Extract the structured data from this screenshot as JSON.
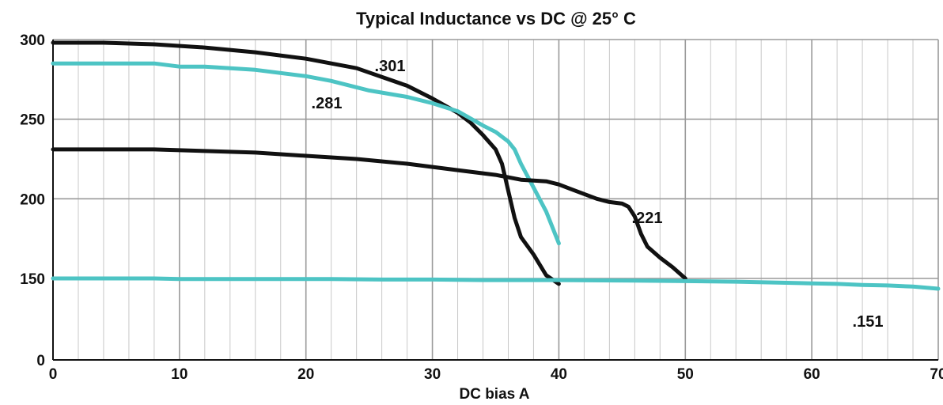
{
  "chart_data": {
    "type": "line",
    "title": "Typical Inductance vs DC @ 25° C",
    "xlabel": "DC bias A",
    "ylabel": "",
    "xlim": [
      0,
      70
    ],
    "ylim": [
      0,
      300
    ],
    "x_ticks": [
      "0",
      "10",
      "20",
      "30",
      "40",
      "50",
      "60",
      "70"
    ],
    "y_ticks": [
      "0",
      "150",
      "200",
      "250",
      "300"
    ],
    "y_tick_values": [
      0,
      150,
      200,
      250,
      300
    ],
    "axis_break": "between 0 and 150",
    "grid": true,
    "minor_x_grid_step": 2,
    "legend": "none (curves labeled inline)",
    "series": [
      {
        "name": ".301",
        "color": "#111111",
        "points": [
          [
            0,
            298
          ],
          [
            4,
            298
          ],
          [
            8,
            297
          ],
          [
            12,
            295
          ],
          [
            16,
            292
          ],
          [
            20,
            288
          ],
          [
            24,
            282
          ],
          [
            28,
            271
          ],
          [
            30,
            263
          ],
          [
            32,
            254
          ],
          [
            33,
            248
          ],
          [
            34,
            240
          ],
          [
            35,
            231
          ],
          [
            35.5,
            222
          ],
          [
            36,
            205
          ],
          [
            36.5,
            188
          ],
          [
            37,
            176
          ],
          [
            38,
            165
          ],
          [
            39,
            152
          ],
          [
            40,
            140
          ]
        ]
      },
      {
        "name": ".281",
        "color": "#4dc4c4",
        "points": [
          [
            0,
            285
          ],
          [
            4,
            285
          ],
          [
            8,
            285
          ],
          [
            10,
            283
          ],
          [
            12,
            283
          ],
          [
            16,
            281
          ],
          [
            20,
            277
          ],
          [
            22,
            274
          ],
          [
            25,
            268
          ],
          [
            28,
            264
          ],
          [
            30,
            260
          ],
          [
            32,
            255
          ],
          [
            34,
            246
          ],
          [
            35,
            242
          ],
          [
            36,
            236
          ],
          [
            36.5,
            231
          ],
          [
            37,
            222
          ],
          [
            38,
            207
          ],
          [
            39,
            192
          ],
          [
            40,
            172
          ]
        ]
      },
      {
        "name": ".221",
        "color": "#111111",
        "points": [
          [
            0,
            231
          ],
          [
            8,
            231
          ],
          [
            12,
            230
          ],
          [
            16,
            229
          ],
          [
            20,
            227
          ],
          [
            24,
            225
          ],
          [
            28,
            222
          ],
          [
            32,
            218
          ],
          [
            35,
            215
          ],
          [
            37,
            212
          ],
          [
            39,
            211
          ],
          [
            40,
            209
          ],
          [
            41,
            206
          ],
          [
            42,
            203
          ],
          [
            43,
            200
          ],
          [
            44,
            198
          ],
          [
            45,
            197
          ],
          [
            45.5,
            195
          ],
          [
            46,
            189
          ],
          [
            46.5,
            178
          ],
          [
            47,
            170
          ],
          [
            48,
            163
          ],
          [
            49,
            157
          ],
          [
            50,
            150
          ]
        ]
      },
      {
        "name": ".151",
        "color": "#4dc4c4",
        "points": [
          [
            0,
            150
          ],
          [
            8,
            150
          ],
          [
            10,
            149
          ],
          [
            16,
            149
          ],
          [
            22,
            149
          ],
          [
            26,
            148
          ],
          [
            30,
            148
          ],
          [
            34,
            147
          ],
          [
            40,
            147
          ],
          [
            46,
            146
          ],
          [
            50,
            145
          ],
          [
            54,
            144
          ],
          [
            58,
            142
          ],
          [
            60,
            141
          ],
          [
            62,
            140
          ],
          [
            64,
            138
          ],
          [
            66,
            137
          ],
          [
            68,
            135
          ],
          [
            70,
            131
          ]
        ]
      }
    ]
  }
}
